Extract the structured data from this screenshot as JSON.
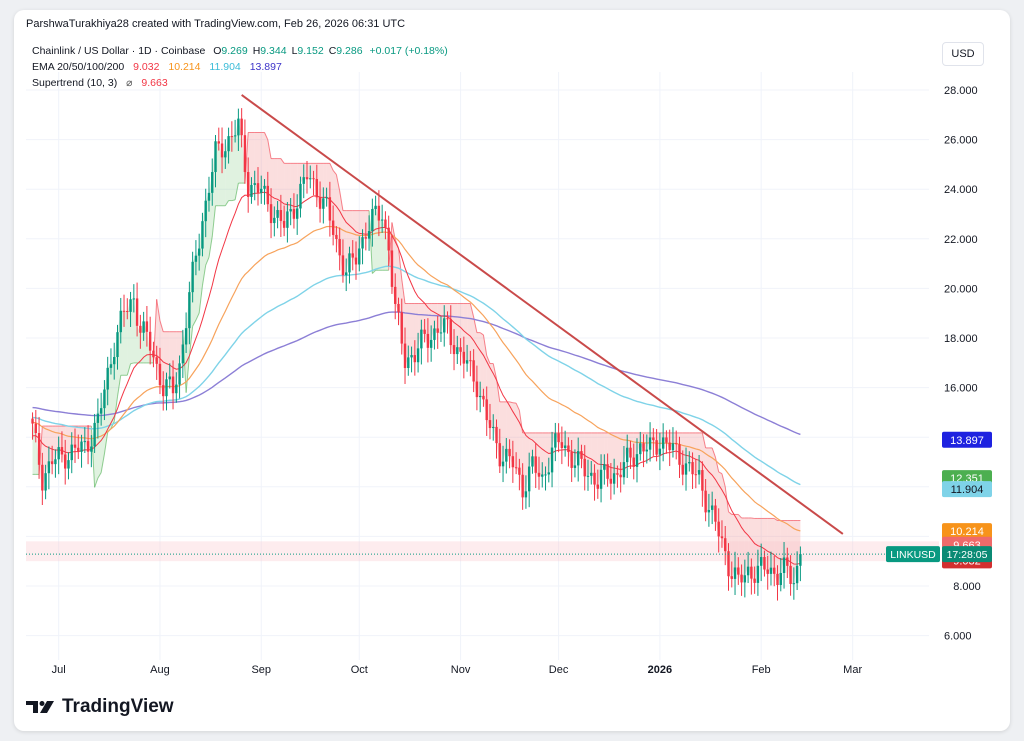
{
  "header": {
    "attribution": "ParshwaTurakhiya28 created with TradingView.com, Feb 26, 2026 06:31 UTC"
  },
  "legend": {
    "symbol": "Chainlink / US Dollar · 1D · Coinbase",
    "ohlc": [
      {
        "k": "O",
        "v": "9.269"
      },
      {
        "k": "H",
        "v": "9.344"
      },
      {
        "k": "L",
        "v": "9.152"
      },
      {
        "k": "C",
        "v": "9.286"
      }
    ],
    "change": "+0.017 (+0.18%)",
    "ema_label": "EMA 20/50/100/200",
    "ema_values": [
      "9.032",
      "10.214",
      "11.904",
      "13.897"
    ],
    "supertrend_label": "Supertrend (10, 3)",
    "supertrend_icon": "⌀",
    "supertrend_value": "9.663"
  },
  "currency": "USD",
  "footer": {
    "brand": "TradingView"
  },
  "colors": {
    "ema20": "#f23645",
    "ema50": "#f7a35c",
    "ema100": "#7fd3e8",
    "ema200": "#8c7fd6",
    "up": "#089981",
    "down": "#f23645",
    "trendline": "#c94a4a",
    "supertrend_up": "#8fd18f",
    "supertrend_down": "#f28a8a"
  },
  "chart_data": {
    "type": "candlestick",
    "symbol": "LINKUSD",
    "ylim": [
      5,
      28.5
    ],
    "y_ticks": [
      "28.000",
      "26.000",
      "24.000",
      "22.000",
      "20.000",
      "18.000",
      "16.000",
      "6.000"
    ],
    "x_ticks": [
      {
        "label": "Jul",
        "day": 8
      },
      {
        "label": "Aug",
        "day": 39
      },
      {
        "label": "Sep",
        "day": 70
      },
      {
        "label": "Oct",
        "day": 100
      },
      {
        "label": "Nov",
        "day": 131
      },
      {
        "label": "Dec",
        "day": 161
      },
      {
        "label": "2026",
        "day": 192
      },
      {
        "label": "Feb",
        "day": 223
      },
      {
        "label": "Mar",
        "day": 251
      }
    ],
    "y_badges": [
      {
        "text": "13.897",
        "value": 13.897,
        "color": "#1e22e0"
      },
      {
        "text": "12.351",
        "value": 12.351,
        "color": "#4caf50"
      },
      {
        "text": "11.904",
        "value": 11.904,
        "color": "#7fd3e8",
        "dark": true
      },
      {
        "text": "10.214",
        "value": 10.214,
        "color": "#f7931a"
      },
      {
        "text": "9.663",
        "value": 9.663,
        "color": "#ef6a6a"
      },
      {
        "text": "9.032",
        "value": 9.032,
        "color": "#d32f2f"
      },
      {
        "text": "8.000",
        "value": 8.0,
        "color": "",
        "plain": true
      }
    ],
    "price_tag": {
      "symbol": "LINKUSD",
      "time": "17:28:05",
      "value": 9.286
    },
    "trendline": {
      "from": {
        "day": 64,
        "price": 27.8
      },
      "to": {
        "day": 248,
        "price": 10.1
      }
    },
    "current_price": 9.286,
    "keypoints": [
      [
        0,
        14.3
      ],
      [
        3,
        12.4
      ],
      [
        6,
        13.0
      ],
      [
        10,
        13.3
      ],
      [
        16,
        13.6
      ],
      [
        20,
        14.6
      ],
      [
        25,
        17.8
      ],
      [
        28,
        19.0
      ],
      [
        31,
        19.6
      ],
      [
        33,
        18.4
      ],
      [
        36,
        17.7
      ],
      [
        40,
        16.0
      ],
      [
        43,
        15.9
      ],
      [
        45,
        16.9
      ],
      [
        48,
        19.7
      ],
      [
        52,
        22.8
      ],
      [
        56,
        25.4
      ],
      [
        60,
        26.0
      ],
      [
        63,
        26.5
      ],
      [
        66,
        24.2
      ],
      [
        70,
        23.9
      ],
      [
        74,
        23.0
      ],
      [
        77,
        22.5
      ],
      [
        81,
        23.6
      ],
      [
        84,
        24.5
      ],
      [
        87,
        24.0
      ],
      [
        90,
        23.2
      ],
      [
        93,
        21.8
      ],
      [
        96,
        20.7
      ],
      [
        99,
        21.2
      ],
      [
        102,
        22.4
      ],
      [
        105,
        22.9
      ],
      [
        107,
        23.0
      ],
      [
        109,
        21.7
      ],
      [
        111,
        19.1
      ],
      [
        114,
        17.2
      ],
      [
        117,
        17.3
      ],
      [
        120,
        18.0
      ],
      [
        124,
        18.3
      ],
      [
        127,
        18.4
      ],
      [
        130,
        17.5
      ],
      [
        133,
        16.9
      ],
      [
        136,
        16.2
      ],
      [
        139,
        14.7
      ],
      [
        143,
        13.4
      ],
      [
        147,
        12.9
      ],
      [
        150,
        12.0
      ],
      [
        153,
        12.8
      ],
      [
        156,
        12.3
      ],
      [
        159,
        13.5
      ],
      [
        162,
        13.8
      ],
      [
        166,
        13.0
      ],
      [
        170,
        12.6
      ],
      [
        173,
        12.2
      ],
      [
        176,
        12.5
      ],
      [
        179,
        12.5
      ],
      [
        182,
        13.0
      ],
      [
        186,
        13.6
      ],
      [
        189,
        13.5
      ],
      [
        192,
        13.9
      ],
      [
        195,
        13.6
      ],
      [
        198,
        13.2
      ],
      [
        201,
        12.7
      ],
      [
        204,
        12.3
      ],
      [
        207,
        11.2
      ],
      [
        210,
        10.1
      ],
      [
        213,
        8.9
      ],
      [
        216,
        8.1
      ],
      [
        219,
        8.6
      ],
      [
        222,
        8.6
      ],
      [
        225,
        8.7
      ],
      [
        228,
        8.5
      ],
      [
        231,
        8.6
      ],
      [
        233,
        8.2
      ],
      [
        235,
        9.28
      ]
    ]
  }
}
